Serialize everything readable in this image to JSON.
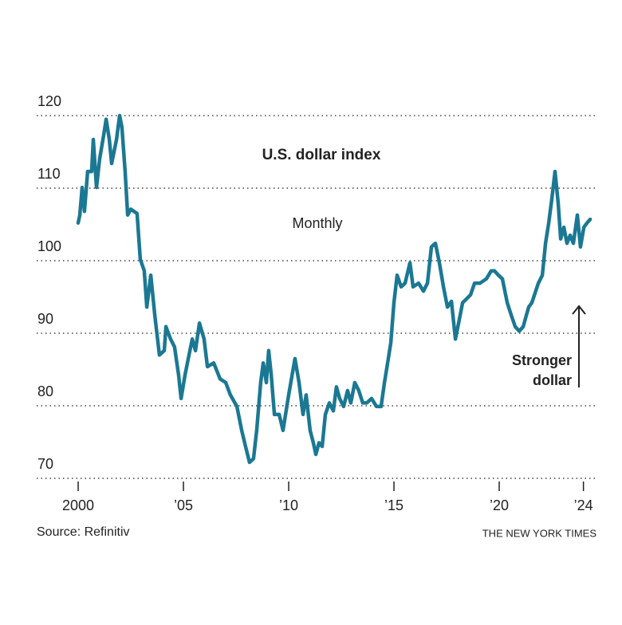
{
  "chart_data": {
    "type": "line",
    "title": "U.S. dollar index",
    "subtitle": "Monthly",
    "annotation": [
      "Stronger",
      "dollar"
    ],
    "source": "Source: Refinitiv",
    "credit": "THE NEW YORK TIMES",
    "color": "#1b7893",
    "grid": true,
    "xlim": [
      1998.03,
      2024.62
    ],
    "xticks": [
      2000,
      {
        "value": 2005,
        "label": "’05"
      },
      {
        "value": 2010,
        "label": "’10"
      },
      {
        "value": 2015,
        "label": "’15"
      },
      {
        "value": 2020,
        "label": "’20"
      },
      {
        "value": 2024,
        "label": "’24"
      }
    ],
    "ylim": [
      70,
      120
    ],
    "yticks": [
      70,
      80,
      90,
      100,
      110,
      120
    ],
    "x": [
      2000.0,
      2000.08,
      2000.19,
      2000.3,
      2000.45,
      2000.64,
      2000.72,
      2000.87,
      2001.02,
      2001.21,
      2001.33,
      2001.48,
      2001.59,
      2001.82,
      2001.97,
      2002.08,
      2002.23,
      2002.35,
      2002.5,
      2002.8,
      2002.95,
      2003.14,
      2003.26,
      2003.45,
      2003.64,
      2003.86,
      2004.09,
      2004.17,
      2004.39,
      2004.58,
      2004.77,
      2004.89,
      2005.08,
      2005.23,
      2005.42,
      2005.57,
      2005.76,
      2005.98,
      2006.14,
      2006.44,
      2006.74,
      2007.01,
      2007.23,
      2007.54,
      2007.77,
      2007.95,
      2008.14,
      2008.33,
      2008.48,
      2008.67,
      2008.79,
      2008.94,
      2009.05,
      2009.17,
      2009.32,
      2009.55,
      2009.73,
      2010.0,
      2010.3,
      2010.49,
      2010.68,
      2010.83,
      2011.02,
      2011.17,
      2011.29,
      2011.44,
      2011.59,
      2011.74,
      2011.93,
      2012.12,
      2012.27,
      2012.42,
      2012.61,
      2012.8,
      2012.95,
      2013.14,
      2013.33,
      2013.52,
      2013.71,
      2013.94,
      2014.17,
      2014.39,
      2014.55,
      2014.7,
      2014.85,
      2015.0,
      2015.15,
      2015.34,
      2015.53,
      2015.76,
      2015.91,
      2016.17,
      2016.4,
      2016.59,
      2016.78,
      2016.97,
      2017.16,
      2017.35,
      2017.54,
      2017.73,
      2017.92,
      2018.07,
      2018.26,
      2018.64,
      2018.83,
      2019.09,
      2019.39,
      2019.62,
      2019.77,
      2019.96,
      2020.15,
      2020.38,
      2020.57,
      2020.76,
      2020.95,
      2021.14,
      2021.29,
      2021.4,
      2021.55,
      2021.7,
      2021.86,
      2022.05,
      2022.2,
      2022.35,
      2022.5,
      2022.65,
      2022.8,
      2022.92,
      2023.07,
      2023.22,
      2023.37,
      2023.52,
      2023.71,
      2023.86,
      2024.02,
      2024.17,
      2024.32
    ],
    "values": [
      105.2,
      106.3,
      110.1,
      106.8,
      112.3,
      112.3,
      116.7,
      110.1,
      114.0,
      117.3,
      119.5,
      116.7,
      113.4,
      116.7,
      120.0,
      118.4,
      112.3,
      106.3,
      107.1,
      106.5,
      100.2,
      98.6,
      93.6,
      98.0,
      92.5,
      87.0,
      87.6,
      90.9,
      89.2,
      88.1,
      84.3,
      81.0,
      84.3,
      86.5,
      89.2,
      87.6,
      91.4,
      89.2,
      85.4,
      85.9,
      83.7,
      83.2,
      81.5,
      79.9,
      76.6,
      74.4,
      72.2,
      72.7,
      76.6,
      83.2,
      85.9,
      83.2,
      87.6,
      84.3,
      78.8,
      78.8,
      76.6,
      81.5,
      86.5,
      83.2,
      78.8,
      81.5,
      76.6,
      74.9,
      73.3,
      74.9,
      74.4,
      78.8,
      80.4,
      79.3,
      82.6,
      81.0,
      79.9,
      82.1,
      80.4,
      83.2,
      82.1,
      80.4,
      80.4,
      81.0,
      79.9,
      79.9,
      83.2,
      85.9,
      88.7,
      94.2,
      98.0,
      96.4,
      96.9,
      99.7,
      96.4,
      96.9,
      95.8,
      96.9,
      101.9,
      102.4,
      99.7,
      96.4,
      93.6,
      94.4,
      89.2,
      91.4,
      94.2,
      95.3,
      96.9,
      96.9,
      97.5,
      98.6,
      98.6,
      98.0,
      97.5,
      94.2,
      92.5,
      90.9,
      90.3,
      90.9,
      92.5,
      93.6,
      94.2,
      95.5,
      96.9,
      98.0,
      102.4,
      105.2,
      108.5,
      112.3,
      107.9,
      103.0,
      104.6,
      102.4,
      103.5,
      102.4,
      106.3,
      101.9,
      104.6,
      105.2,
      105.7
    ]
  }
}
